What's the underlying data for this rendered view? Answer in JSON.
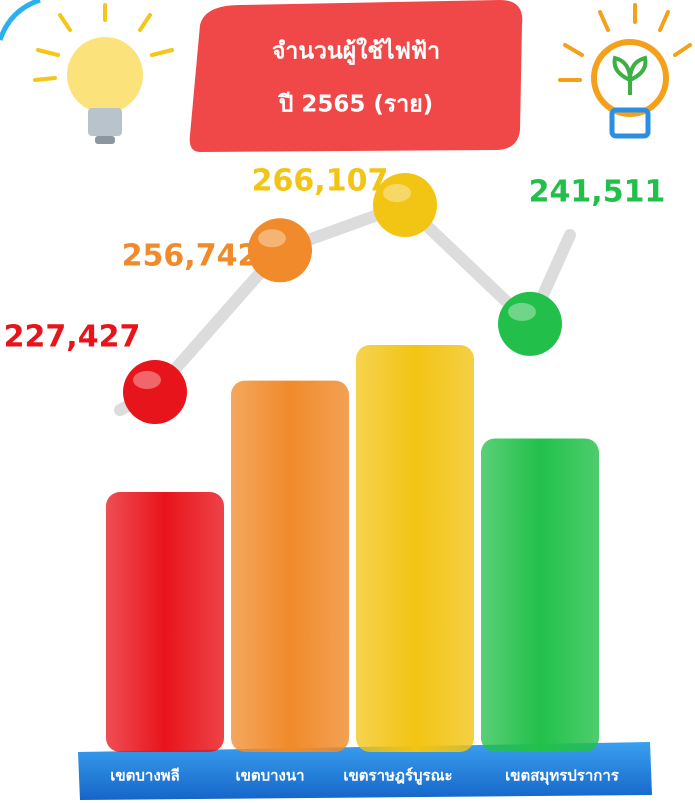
{
  "chart_data": {
    "type": "bar-line",
    "title": [
      "จำนวนผู้ใช้ไฟฟ้า",
      "ปี 2565 (ราย)"
    ],
    "categories": [
      "เขตบางพลี",
      "เขตบางนา",
      "เขตราษฎร์บูรณะ",
      "เขตสมุทรปราการ"
    ],
    "values": [
      227427,
      256742,
      266107,
      241511
    ],
    "value_labels": [
      "227,427",
      "256,742",
      "266,107",
      "241,511"
    ],
    "colors": [
      "#e8141b",
      "#f08a2a",
      "#f2c414",
      "#22c04a"
    ]
  }
}
